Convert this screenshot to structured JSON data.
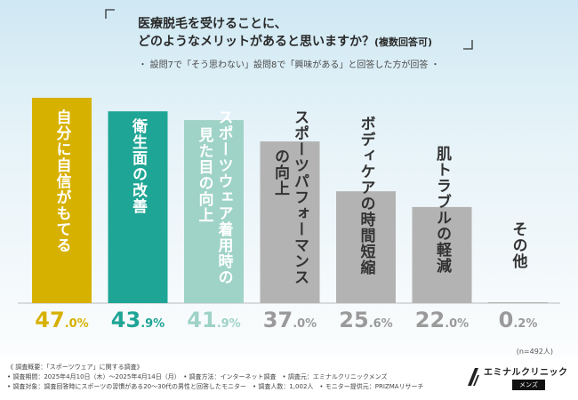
{
  "chart_data": {
    "type": "bar",
    "title_line1": "医療脱毛を受けることに、",
    "title_line2": "どのようなメリットがあると思いますか？",
    "title_note": "(複数回答可)",
    "subtitle": "・ 設問7で「そう思わない」設問8で「興味がある」と回答した方が回答 ・",
    "categories": [
      "自分に自信がもてる",
      "衛生面の改善",
      "スポーツウェア着用時の見た目の向上",
      "スポーツパフォーマンスの向上",
      "ボディケアの時間短縮",
      "肌トラブルの軽減",
      "その他"
    ],
    "values": [
      47.0,
      43.9,
      41.9,
      37.0,
      25.6,
      22.0,
      0.2
    ],
    "value_int_labels": [
      "47",
      "43",
      "41",
      "37",
      "25",
      "22",
      "0"
    ],
    "value_dec_labels": [
      ".0%",
      ".9%",
      ".9%",
      ".0%",
      ".6%",
      ".0%",
      ".2%"
    ],
    "bar_label_columns": [
      [
        "自分に自信がもてる"
      ],
      [
        "衛生面の改善"
      ],
      [
        "スポーツウェア着用時の",
        "見た目の向上"
      ],
      [
        "スポーツパフォーマンス",
        "の向上"
      ],
      [
        "ボディケアの時間短縮"
      ],
      [
        "肌トラブルの軽減"
      ],
      [
        "その他"
      ]
    ],
    "colors": [
      "#d7b100",
      "#1fa595",
      "#9fd3c7",
      "#b3b3b3",
      "#b3b3b3",
      "#b3b3b3",
      "#b3b3b3"
    ],
    "ylim": [
      0,
      47
    ],
    "sample_note": "(n=492人)"
  },
  "footer": {
    "lines": [
      "《 調査概要：「スポーツウェア」に関する調査》",
      "• 調査期間：2025年4月10日（木）～2025年4月14日（月）　• 調査方法：インターネット調査　• 調査元：エミナルクリニックメンズ",
      "• 調査対象：調査回答時にスポーツの習慣がある20～30代の男性と回答したモニター　• 調査人数：1,002人　• モニター提供元：PRIZMAリサーチ"
    ],
    "logo_name": "エミナルクリニック",
    "logo_tag": "メンズ"
  }
}
